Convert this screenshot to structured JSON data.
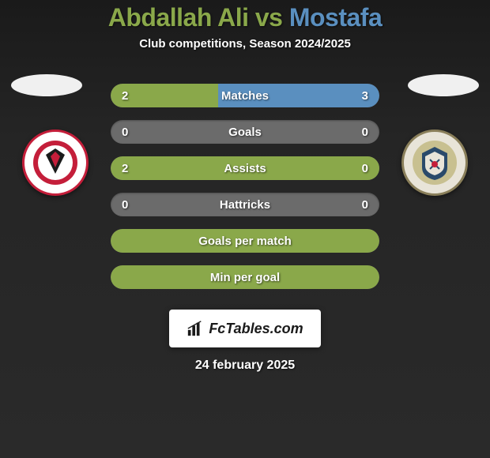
{
  "header": {
    "player1": "Abdallah Ali",
    "vs": "vs",
    "player2": "Mostafa",
    "subtitle": "Club competitions, Season 2024/2025"
  },
  "colors": {
    "player1": "#8aa84a",
    "player2": "#5a8fbf",
    "neutral_bar": "#6b6b6b",
    "background_start": "#1a1a1a",
    "background_end": "#2a2a2a"
  },
  "stats": [
    {
      "label": "Matches",
      "left_val": "2",
      "right_val": "3",
      "left_pct": 40,
      "right_pct": 60
    },
    {
      "label": "Goals",
      "left_val": "0",
      "right_val": "0",
      "left_pct": 0,
      "right_pct": 0
    },
    {
      "label": "Assists",
      "left_val": "2",
      "right_val": "0",
      "left_pct": 100,
      "right_pct": 0
    },
    {
      "label": "Hattricks",
      "left_val": "0",
      "right_val": "0",
      "left_pct": 0,
      "right_pct": 0
    },
    {
      "label": "Goals per match",
      "left_val": "",
      "right_val": "",
      "left_pct": 100,
      "right_pct": 0,
      "full": true
    },
    {
      "label": "Min per goal",
      "left_val": "",
      "right_val": "",
      "left_pct": 100,
      "right_pct": 0,
      "full": true
    }
  ],
  "footer": {
    "brand": "FcTables.com",
    "date": "24 february 2025"
  },
  "clubs": {
    "left": {
      "name": "Al Ahly",
      "ring_color": "#c41e3a",
      "bg": "#ffffff"
    },
    "right": {
      "name": "Haras El Hodood",
      "ring_color": "#8a7f5a",
      "bg": "#e8e4d8"
    }
  }
}
